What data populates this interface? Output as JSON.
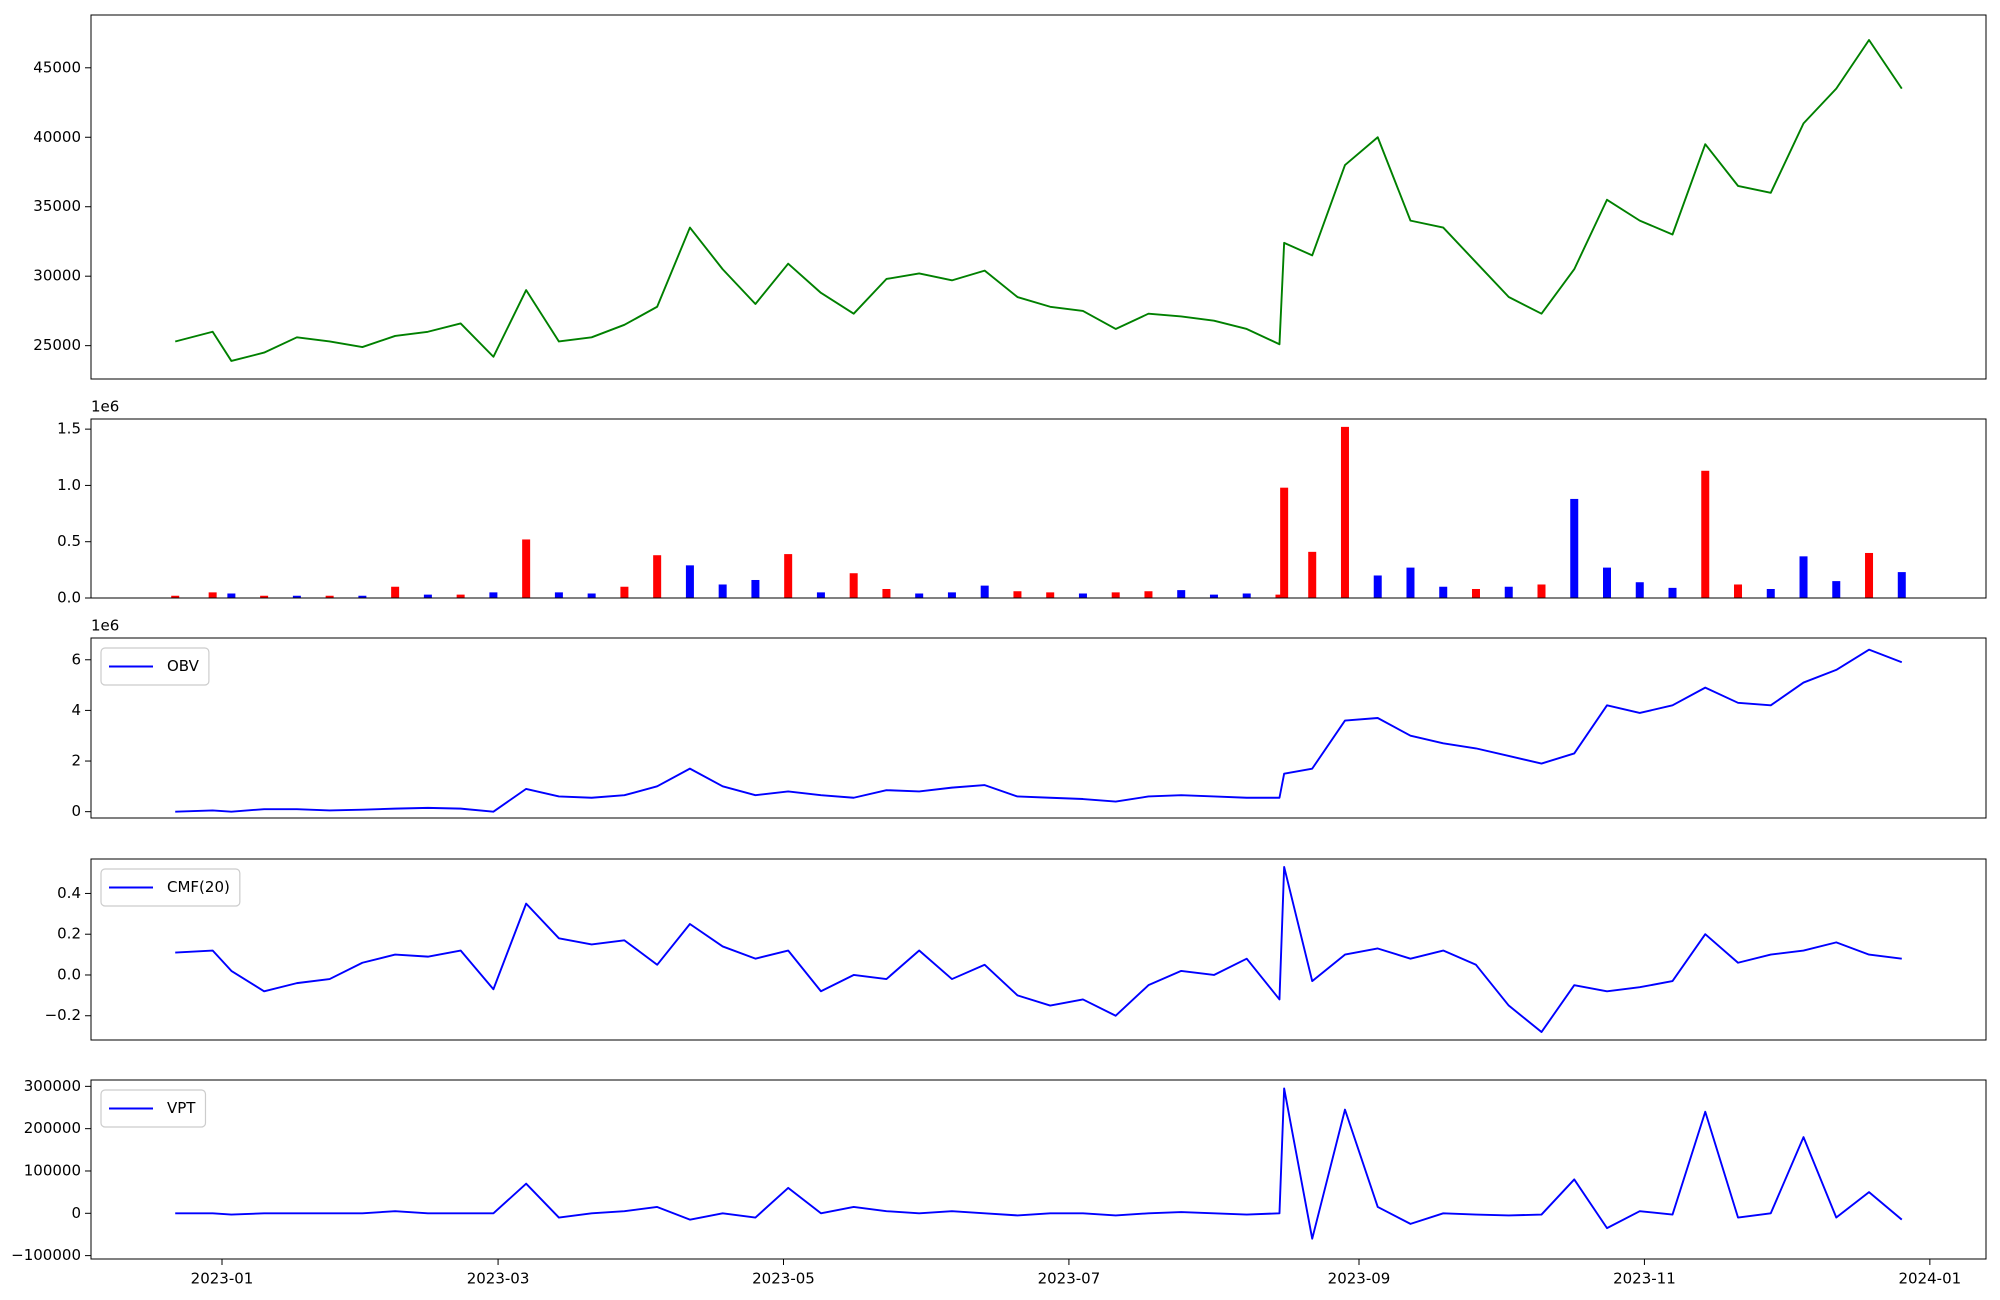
{
  "chart_data": [
    {
      "type": "line",
      "xlim": [
        "2022-12-04",
        "2024-01-13"
      ],
      "ylim": [
        22600,
        48800
      ],
      "yticks": [
        25000,
        30000,
        35000,
        40000,
        45000
      ],
      "x": [
        "2022-12-22",
        "2022-12-30",
        "2023-01-03",
        "2023-01-10",
        "2023-01-17",
        "2023-01-24",
        "2023-01-31",
        "2023-02-07",
        "2023-02-14",
        "2023-02-21",
        "2023-02-28",
        "2023-03-07",
        "2023-03-14",
        "2023-03-21",
        "2023-03-28",
        "2023-04-04",
        "2023-04-11",
        "2023-04-18",
        "2023-04-25",
        "2023-05-02",
        "2023-05-09",
        "2023-05-16",
        "2023-05-23",
        "2023-05-30",
        "2023-06-06",
        "2023-06-13",
        "2023-06-20",
        "2023-06-27",
        "2023-07-04",
        "2023-07-11",
        "2023-07-18",
        "2023-07-25",
        "2023-08-01",
        "2023-08-08",
        "2023-08-15",
        "2023-08-16",
        "2023-08-22",
        "2023-08-29",
        "2023-09-05",
        "2023-09-12",
        "2023-09-19",
        "2023-09-26",
        "2023-10-03",
        "2023-10-10",
        "2023-10-17",
        "2023-10-24",
        "2023-10-31",
        "2023-11-07",
        "2023-11-14",
        "2023-11-21",
        "2023-11-28",
        "2023-12-05",
        "2023-12-12",
        "2023-12-19",
        "2023-12-26"
      ],
      "series": [
        {
          "color": "#008000",
          "values": [
            25300,
            26000,
            23900,
            24500,
            25600,
            25300,
            24900,
            25700,
            26000,
            26600,
            24200,
            29000,
            25300,
            25600,
            26500,
            27800,
            33500,
            30500,
            28000,
            30900,
            28800,
            27300,
            29800,
            30200,
            29700,
            30400,
            28500,
            27800,
            27500,
            26200,
            27300,
            27100,
            26800,
            26200,
            25100,
            32400,
            31500,
            38000,
            40000,
            34000,
            33500,
            31000,
            28500,
            27300,
            30500,
            35500,
            34000,
            33000,
            39500,
            36500,
            36000,
            41000,
            43500,
            47000,
            43500
          ]
        }
      ]
    },
    {
      "type": "bar",
      "xlim": [
        "2022-12-04",
        "2024-01-13"
      ],
      "ylim": [
        0,
        1.59
      ],
      "y_offset_label": "1e6",
      "yticks": [
        {
          "value": 0,
          "label": "0.0"
        },
        0.5,
        {
          "value": 1,
          "label": "1.0"
        },
        1.5
      ],
      "x": [
        "2022-12-22",
        "2022-12-30",
        "2023-01-03",
        "2023-01-10",
        "2023-01-17",
        "2023-01-24",
        "2023-01-31",
        "2023-02-07",
        "2023-02-14",
        "2023-02-21",
        "2023-02-28",
        "2023-03-07",
        "2023-03-14",
        "2023-03-21",
        "2023-03-28",
        "2023-04-04",
        "2023-04-11",
        "2023-04-18",
        "2023-04-25",
        "2023-05-02",
        "2023-05-09",
        "2023-05-16",
        "2023-05-23",
        "2023-05-30",
        "2023-06-06",
        "2023-06-13",
        "2023-06-20",
        "2023-06-27",
        "2023-07-04",
        "2023-07-11",
        "2023-07-18",
        "2023-07-25",
        "2023-08-01",
        "2023-08-08",
        "2023-08-15",
        "2023-08-16",
        "2023-08-22",
        "2023-08-29",
        "2023-09-05",
        "2023-09-12",
        "2023-09-19",
        "2023-09-26",
        "2023-10-03",
        "2023-10-10",
        "2023-10-17",
        "2023-10-24",
        "2023-10-31",
        "2023-11-07",
        "2023-11-14",
        "2023-11-21",
        "2023-11-28",
        "2023-12-05",
        "2023-12-12",
        "2023-12-19",
        "2023-12-26"
      ],
      "values": [
        0.02,
        0.05,
        0.04,
        0.02,
        0.02,
        0.02,
        0.02,
        0.1,
        0.03,
        0.03,
        0.05,
        0.52,
        0.05,
        0.04,
        0.1,
        0.38,
        0.29,
        0.12,
        0.16,
        0.39,
        0.05,
        0.22,
        0.08,
        0.04,
        0.05,
        0.11,
        0.06,
        0.05,
        0.04,
        0.05,
        0.06,
        0.07,
        0.03,
        0.04,
        0.03,
        0.98,
        0.41,
        1.52,
        0.2,
        0.27,
        0.1,
        0.08,
        0.1,
        0.12,
        0.88,
        0.27,
        0.14,
        0.09,
        1.13,
        0.12,
        0.08,
        0.37,
        0.15,
        0.4,
        0.23
      ],
      "colors": [
        "red",
        "red",
        "blue",
        "red",
        "blue",
        "red",
        "blue",
        "red",
        "blue",
        "red",
        "blue",
        "red",
        "blue",
        "blue",
        "red",
        "red",
        "blue",
        "blue",
        "blue",
        "red",
        "blue",
        "red",
        "red",
        "blue",
        "blue",
        "blue",
        "red",
        "red",
        "blue",
        "red",
        "red",
        "blue",
        "blue",
        "blue",
        "red",
        "red",
        "red",
        "red",
        "blue",
        "blue",
        "blue",
        "red",
        "blue",
        "red",
        "blue",
        "blue",
        "blue",
        "blue",
        "red",
        "red",
        "blue",
        "blue",
        "blue",
        "red",
        "blue"
      ]
    },
    {
      "type": "line",
      "xlim": [
        "2022-12-04",
        "2024-01-13"
      ],
      "ylim": [
        -0.25,
        6.86
      ],
      "y_offset_label": "1e6",
      "yticks": [
        0,
        2,
        4,
        6
      ],
      "legend": "upper left",
      "x": [
        "2022-12-22",
        "2022-12-30",
        "2023-01-03",
        "2023-01-10",
        "2023-01-17",
        "2023-01-24",
        "2023-01-31",
        "2023-02-07",
        "2023-02-14",
        "2023-02-21",
        "2023-02-28",
        "2023-03-07",
        "2023-03-14",
        "2023-03-21",
        "2023-03-28",
        "2023-04-04",
        "2023-04-11",
        "2023-04-18",
        "2023-04-25",
        "2023-05-02",
        "2023-05-09",
        "2023-05-16",
        "2023-05-23",
        "2023-05-30",
        "2023-06-06",
        "2023-06-13",
        "2023-06-20",
        "2023-06-27",
        "2023-07-04",
        "2023-07-11",
        "2023-07-18",
        "2023-07-25",
        "2023-08-01",
        "2023-08-08",
        "2023-08-15",
        "2023-08-16",
        "2023-08-22",
        "2023-08-29",
        "2023-09-05",
        "2023-09-12",
        "2023-09-19",
        "2023-09-26",
        "2023-10-03",
        "2023-10-10",
        "2023-10-17",
        "2023-10-24",
        "2023-10-31",
        "2023-11-07",
        "2023-11-14",
        "2023-11-21",
        "2023-11-28",
        "2023-12-05",
        "2023-12-12",
        "2023-12-19",
        "2023-12-26"
      ],
      "series": [
        {
          "name": "OBV",
          "color": "#0000ff",
          "values": [
            0,
            0.05,
            0,
            0.1,
            0.1,
            0.05,
            0.08,
            0.12,
            0.15,
            0.12,
            0,
            0.9,
            0.6,
            0.55,
            0.65,
            1.0,
            1.7,
            1.0,
            0.65,
            0.8,
            0.65,
            0.55,
            0.85,
            0.8,
            0.95,
            1.05,
            0.6,
            0.55,
            0.5,
            0.4,
            0.6,
            0.65,
            0.6,
            0.55,
            0.55,
            1.5,
            1.7,
            3.6,
            3.7,
            3.0,
            2.7,
            2.5,
            2.2,
            1.9,
            2.3,
            4.2,
            3.9,
            4.2,
            4.9,
            4.3,
            4.2,
            5.1,
            5.6,
            6.4,
            5.9
          ]
        }
      ]
    },
    {
      "type": "line",
      "xlim": [
        "2022-12-04",
        "2024-01-13"
      ],
      "ylim": [
        -0.319,
        0.569
      ],
      "legend": "upper left",
      "yticks": [
        {
          "value": -0.2,
          "label": "−0.2"
        },
        {
          "value": 0,
          "label": "0.0"
        },
        0.2,
        0.4
      ],
      "x": [
        "2022-12-22",
        "2022-12-30",
        "2023-01-03",
        "2023-01-10",
        "2023-01-17",
        "2023-01-24",
        "2023-01-31",
        "2023-02-07",
        "2023-02-14",
        "2023-02-21",
        "2023-02-28",
        "2023-03-07",
        "2023-03-14",
        "2023-03-21",
        "2023-03-28",
        "2023-04-04",
        "2023-04-11",
        "2023-04-18",
        "2023-04-25",
        "2023-05-02",
        "2023-05-09",
        "2023-05-16",
        "2023-05-23",
        "2023-05-30",
        "2023-06-06",
        "2023-06-13",
        "2023-06-20",
        "2023-06-27",
        "2023-07-04",
        "2023-07-11",
        "2023-07-18",
        "2023-07-25",
        "2023-08-01",
        "2023-08-08",
        "2023-08-15",
        "2023-08-16",
        "2023-08-22",
        "2023-08-29",
        "2023-09-05",
        "2023-09-12",
        "2023-09-19",
        "2023-09-26",
        "2023-10-03",
        "2023-10-10",
        "2023-10-17",
        "2023-10-24",
        "2023-10-31",
        "2023-11-07",
        "2023-11-14",
        "2023-11-21",
        "2023-11-28",
        "2023-12-05",
        "2023-12-12",
        "2023-12-19",
        "2023-12-26"
      ],
      "series": [
        {
          "name": "CMF(20)",
          "color": "#0000ff",
          "values": [
            0.11,
            0.12,
            0.02,
            -0.08,
            -0.04,
            -0.02,
            0.06,
            0.1,
            0.09,
            0.12,
            -0.07,
            0.35,
            0.18,
            0.15,
            0.17,
            0.05,
            0.25,
            0.14,
            0.08,
            0.12,
            -0.08,
            0.0,
            -0.02,
            0.12,
            -0.02,
            0.05,
            -0.1,
            -0.15,
            -0.12,
            -0.2,
            -0.05,
            0.02,
            0.0,
            0.08,
            -0.12,
            0.53,
            -0.03,
            0.1,
            0.13,
            0.08,
            0.12,
            0.05,
            -0.15,
            -0.28,
            -0.05,
            -0.08,
            -0.06,
            -0.03,
            0.2,
            0.06,
            0.1,
            0.12,
            0.16,
            0.1,
            0.08
          ]
        }
      ]
    },
    {
      "type": "line",
      "xlim": [
        "2022-12-04",
        "2024-01-13"
      ],
      "ylim": [
        -108000,
        315000
      ],
      "legend": "upper left",
      "yticks": [
        {
          "value": -100000,
          "label": "−100000"
        },
        0,
        100000,
        200000,
        300000
      ],
      "xticks": [
        {
          "value": "2023-01-01",
          "label": "2023-01"
        },
        {
          "value": "2023-03-01",
          "label": "2023-03"
        },
        {
          "value": "2023-05-01",
          "label": "2023-05"
        },
        {
          "value": "2023-07-01",
          "label": "2023-07"
        },
        {
          "value": "2023-09-01",
          "label": "2023-09"
        },
        {
          "value": "2023-11-01",
          "label": "2023-11"
        },
        {
          "value": "2024-01-01",
          "label": "2024-01"
        }
      ],
      "x": [
        "2022-12-22",
        "2022-12-30",
        "2023-01-03",
        "2023-01-10",
        "2023-01-17",
        "2023-01-24",
        "2023-01-31",
        "2023-02-07",
        "2023-02-14",
        "2023-02-21",
        "2023-02-28",
        "2023-03-07",
        "2023-03-14",
        "2023-03-21",
        "2023-03-28",
        "2023-04-04",
        "2023-04-11",
        "2023-04-18",
        "2023-04-25",
        "2023-05-02",
        "2023-05-09",
        "2023-05-16",
        "2023-05-23",
        "2023-05-30",
        "2023-06-06",
        "2023-06-13",
        "2023-06-20",
        "2023-06-27",
        "2023-07-04",
        "2023-07-11",
        "2023-07-18",
        "2023-07-25",
        "2023-08-01",
        "2023-08-08",
        "2023-08-15",
        "2023-08-16",
        "2023-08-22",
        "2023-08-29",
        "2023-09-05",
        "2023-09-12",
        "2023-09-19",
        "2023-09-26",
        "2023-10-03",
        "2023-10-10",
        "2023-10-17",
        "2023-10-24",
        "2023-10-31",
        "2023-11-07",
        "2023-11-14",
        "2023-11-21",
        "2023-11-28",
        "2023-12-05",
        "2023-12-12",
        "2023-12-19",
        "2023-12-26"
      ],
      "series": [
        {
          "name": "VPT",
          "color": "#0000ff",
          "values": [
            0,
            0,
            -3000,
            0,
            0,
            0,
            0,
            5000,
            0,
            0,
            0,
            70000,
            -10000,
            0,
            5000,
            15000,
            -15000,
            0,
            -10000,
            60000,
            0,
            15000,
            5000,
            0,
            5000,
            0,
            -5000,
            0,
            0,
            -5000,
            0,
            3000,
            0,
            -3000,
            0,
            295000,
            -60000,
            245000,
            15000,
            -25000,
            0,
            -3000,
            -5000,
            -3000,
            80000,
            -35000,
            5000,
            -3000,
            240000,
            -10000,
            0,
            180000,
            -10000,
            50000,
            -15000
          ]
        }
      ]
    }
  ]
}
